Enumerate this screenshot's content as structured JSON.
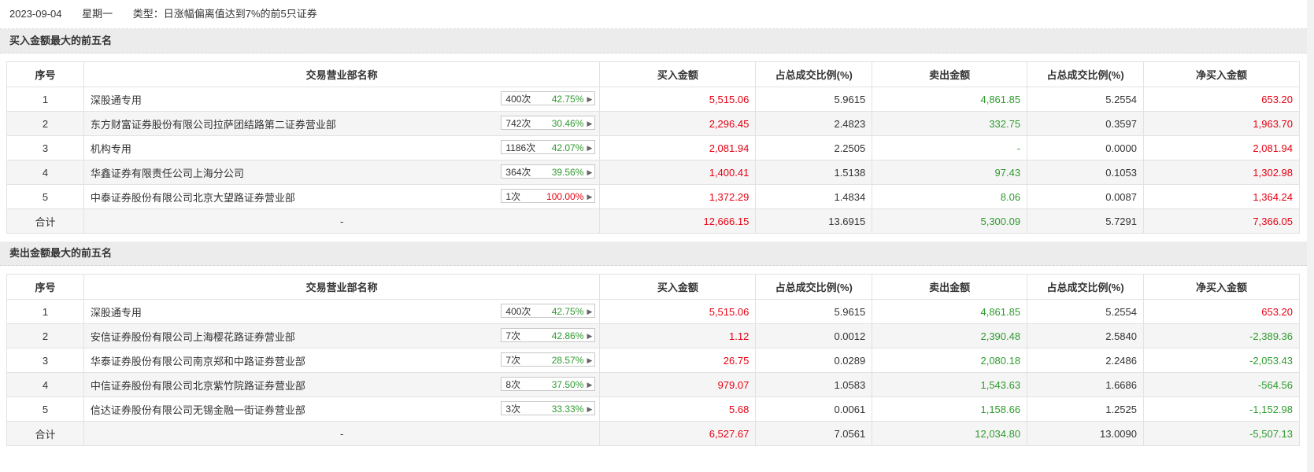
{
  "header": {
    "date": "2023-09-04",
    "weekday": "星期一",
    "type": "类型：日涨幅偏离值达到7%的前5只证券"
  },
  "columns": [
    "序号",
    "交易营业部名称",
    "买入金额",
    "占总成交比例(%)",
    "卖出金额",
    "占总成交比例(%)",
    "净买入金额"
  ],
  "colors": {
    "red": "#e60012",
    "green": "#2f9b2f"
  },
  "buy_section": {
    "title": "买入金额最大的前五名",
    "rows": [
      {
        "idx": "1",
        "name": "深股通专用",
        "count": "400次",
        "pct": "42.75%",
        "buy": "5,515.06",
        "buy_ratio": "5.9615",
        "sell": "4,861.85",
        "sell_ratio": "5.2554",
        "net": "653.20"
      },
      {
        "idx": "2",
        "name": "东方财富证券股份有限公司拉萨团结路第二证券营业部",
        "count": "742次",
        "pct": "30.46%",
        "buy": "2,296.45",
        "buy_ratio": "2.4823",
        "sell": "332.75",
        "sell_ratio": "0.3597",
        "net": "1,963.70"
      },
      {
        "idx": "3",
        "name": "机构专用",
        "count": "1186次",
        "pct": "42.07%",
        "buy": "2,081.94",
        "buy_ratio": "2.2505",
        "sell": "-",
        "sell_ratio": "0.0000",
        "net": "2,081.94"
      },
      {
        "idx": "4",
        "name": "华鑫证券有限责任公司上海分公司",
        "count": "364次",
        "pct": "39.56%",
        "buy": "1,400.41",
        "buy_ratio": "1.5138",
        "sell": "97.43",
        "sell_ratio": "0.1053",
        "net": "1,302.98"
      },
      {
        "idx": "5",
        "name": "中泰证券股份有限公司北京大望路证券营业部",
        "count": "1次",
        "pct": "100.00%",
        "buy": "1,372.29",
        "buy_ratio": "1.4834",
        "sell": "8.06",
        "sell_ratio": "0.0087",
        "net": "1,364.24"
      }
    ],
    "total": {
      "label": "合计",
      "name": "-",
      "buy": "12,666.15",
      "buy_ratio": "13.6915",
      "sell": "5,300.09",
      "sell_ratio": "5.7291",
      "net": "7,366.05"
    }
  },
  "sell_section": {
    "title": "卖出金额最大的前五名",
    "rows": [
      {
        "idx": "1",
        "name": "深股通专用",
        "count": "400次",
        "pct": "42.75%",
        "buy": "5,515.06",
        "buy_ratio": "5.9615",
        "sell": "4,861.85",
        "sell_ratio": "5.2554",
        "net": "653.20"
      },
      {
        "idx": "2",
        "name": "安信证券股份有限公司上海樱花路证券营业部",
        "count": "7次",
        "pct": "42.86%",
        "buy": "1.12",
        "buy_ratio": "0.0012",
        "sell": "2,390.48",
        "sell_ratio": "2.5840",
        "net": "-2,389.36"
      },
      {
        "idx": "3",
        "name": "华泰证券股份有限公司南京郑和中路证券营业部",
        "count": "7次",
        "pct": "28.57%",
        "buy": "26.75",
        "buy_ratio": "0.0289",
        "sell": "2,080.18",
        "sell_ratio": "2.2486",
        "net": "-2,053.43"
      },
      {
        "idx": "4",
        "name": "中信证券股份有限公司北京紫竹院路证券营业部",
        "count": "8次",
        "pct": "37.50%",
        "buy": "979.07",
        "buy_ratio": "1.0583",
        "sell": "1,543.63",
        "sell_ratio": "1.6686",
        "net": "-564.56"
      },
      {
        "idx": "5",
        "name": "信达证券股份有限公司无锡金融一街证券营业部",
        "count": "3次",
        "pct": "33.33%",
        "buy": "5.68",
        "buy_ratio": "0.0061",
        "sell": "1,158.66",
        "sell_ratio": "1.2525",
        "net": "-1,152.98"
      }
    ],
    "total": {
      "label": "合计",
      "name": "-",
      "buy": "6,527.67",
      "buy_ratio": "7.0561",
      "sell": "12,034.80",
      "sell_ratio": "13.0090",
      "net": "-5,507.13"
    }
  }
}
